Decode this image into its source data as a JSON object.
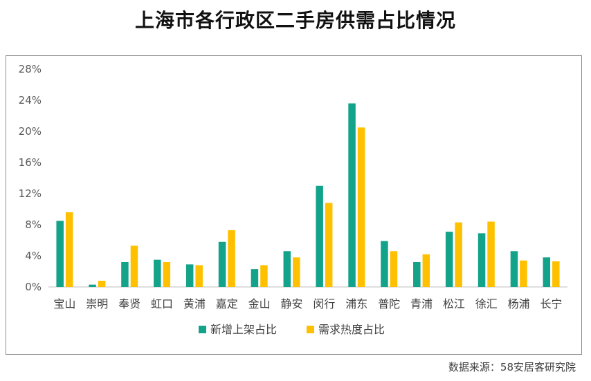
{
  "title": "上海市各行政区二手房供需占比情况",
  "source": "数据来源：58安居客研究院",
  "chart_data": {
    "type": "bar",
    "title": "上海市各行政区二手房供需占比情况",
    "xlabel": "",
    "ylabel": "",
    "ylim": [
      0,
      28
    ],
    "yticks": [
      0,
      4,
      8,
      12,
      16,
      20,
      24,
      28
    ],
    "ytick_labels": [
      "0%",
      "4%",
      "8%",
      "12%",
      "16%",
      "20%",
      "24%",
      "28%"
    ],
    "categories": [
      "宝山",
      "崇明",
      "奉贤",
      "虹口",
      "黄浦",
      "嘉定",
      "金山",
      "静安",
      "闵行",
      "浦东",
      "普陀",
      "青浦",
      "松江",
      "徐汇",
      "杨浦",
      "长宁"
    ],
    "series": [
      {
        "name": "新增上架占比",
        "color": "#12a38a",
        "values": [
          8.5,
          0.3,
          3.2,
          3.5,
          2.9,
          5.8,
          2.3,
          4.6,
          13.0,
          23.6,
          5.9,
          3.2,
          7.1,
          6.9,
          4.6,
          3.8
        ]
      },
      {
        "name": "需求热度占比",
        "color": "#ffc000",
        "values": [
          9.6,
          0.8,
          5.3,
          3.2,
          2.8,
          7.3,
          2.8,
          3.8,
          10.8,
          20.5,
          4.6,
          4.2,
          8.3,
          8.4,
          3.4,
          3.3
        ]
      }
    ],
    "grid": false,
    "legend": "bottom"
  }
}
